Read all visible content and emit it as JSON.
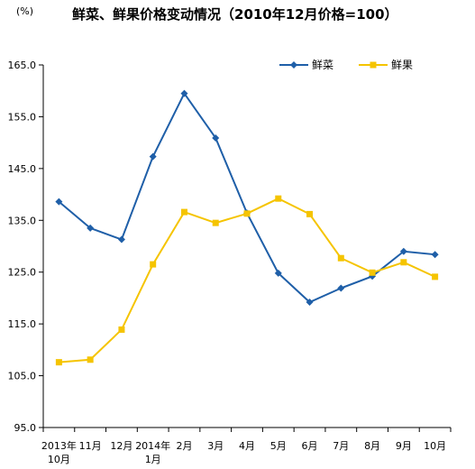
{
  "chart_data": {
    "type": "line",
    "title": "鲜菜、鲜果价格变动情况（2010年12月价格=100）",
    "y_unit": "(%)",
    "categories": [
      [
        "2013年",
        "10月"
      ],
      [
        "11月"
      ],
      [
        "12月"
      ],
      [
        "2014年",
        "1月"
      ],
      [
        "2月"
      ],
      [
        "3月"
      ],
      [
        "4月"
      ],
      [
        "5月"
      ],
      [
        "6月"
      ],
      [
        "7月"
      ],
      [
        "8月"
      ],
      [
        "9月"
      ],
      [
        "10月"
      ]
    ],
    "ylim": [
      95.0,
      165.0
    ],
    "yticks": [
      "95.0",
      "105.0",
      "115.0",
      "125.0",
      "135.0",
      "145.0",
      "155.0",
      "165.0"
    ],
    "grid": false,
    "legend_position": "top-right",
    "series": [
      {
        "name": "鲜菜",
        "color": "#1f5fa8",
        "marker": "diamond",
        "values": [
          138.6,
          133.5,
          131.3,
          147.3,
          159.5,
          150.9,
          136.4,
          124.8,
          119.2,
          121.9,
          124.2,
          129.0,
          128.4
        ]
      },
      {
        "name": "鲜果",
        "color": "#f5c400",
        "marker": "square",
        "values": [
          107.6,
          108.1,
          113.9,
          126.5,
          136.6,
          134.5,
          136.3,
          139.2,
          136.2,
          127.7,
          124.9,
          126.9,
          124.1
        ]
      }
    ]
  }
}
